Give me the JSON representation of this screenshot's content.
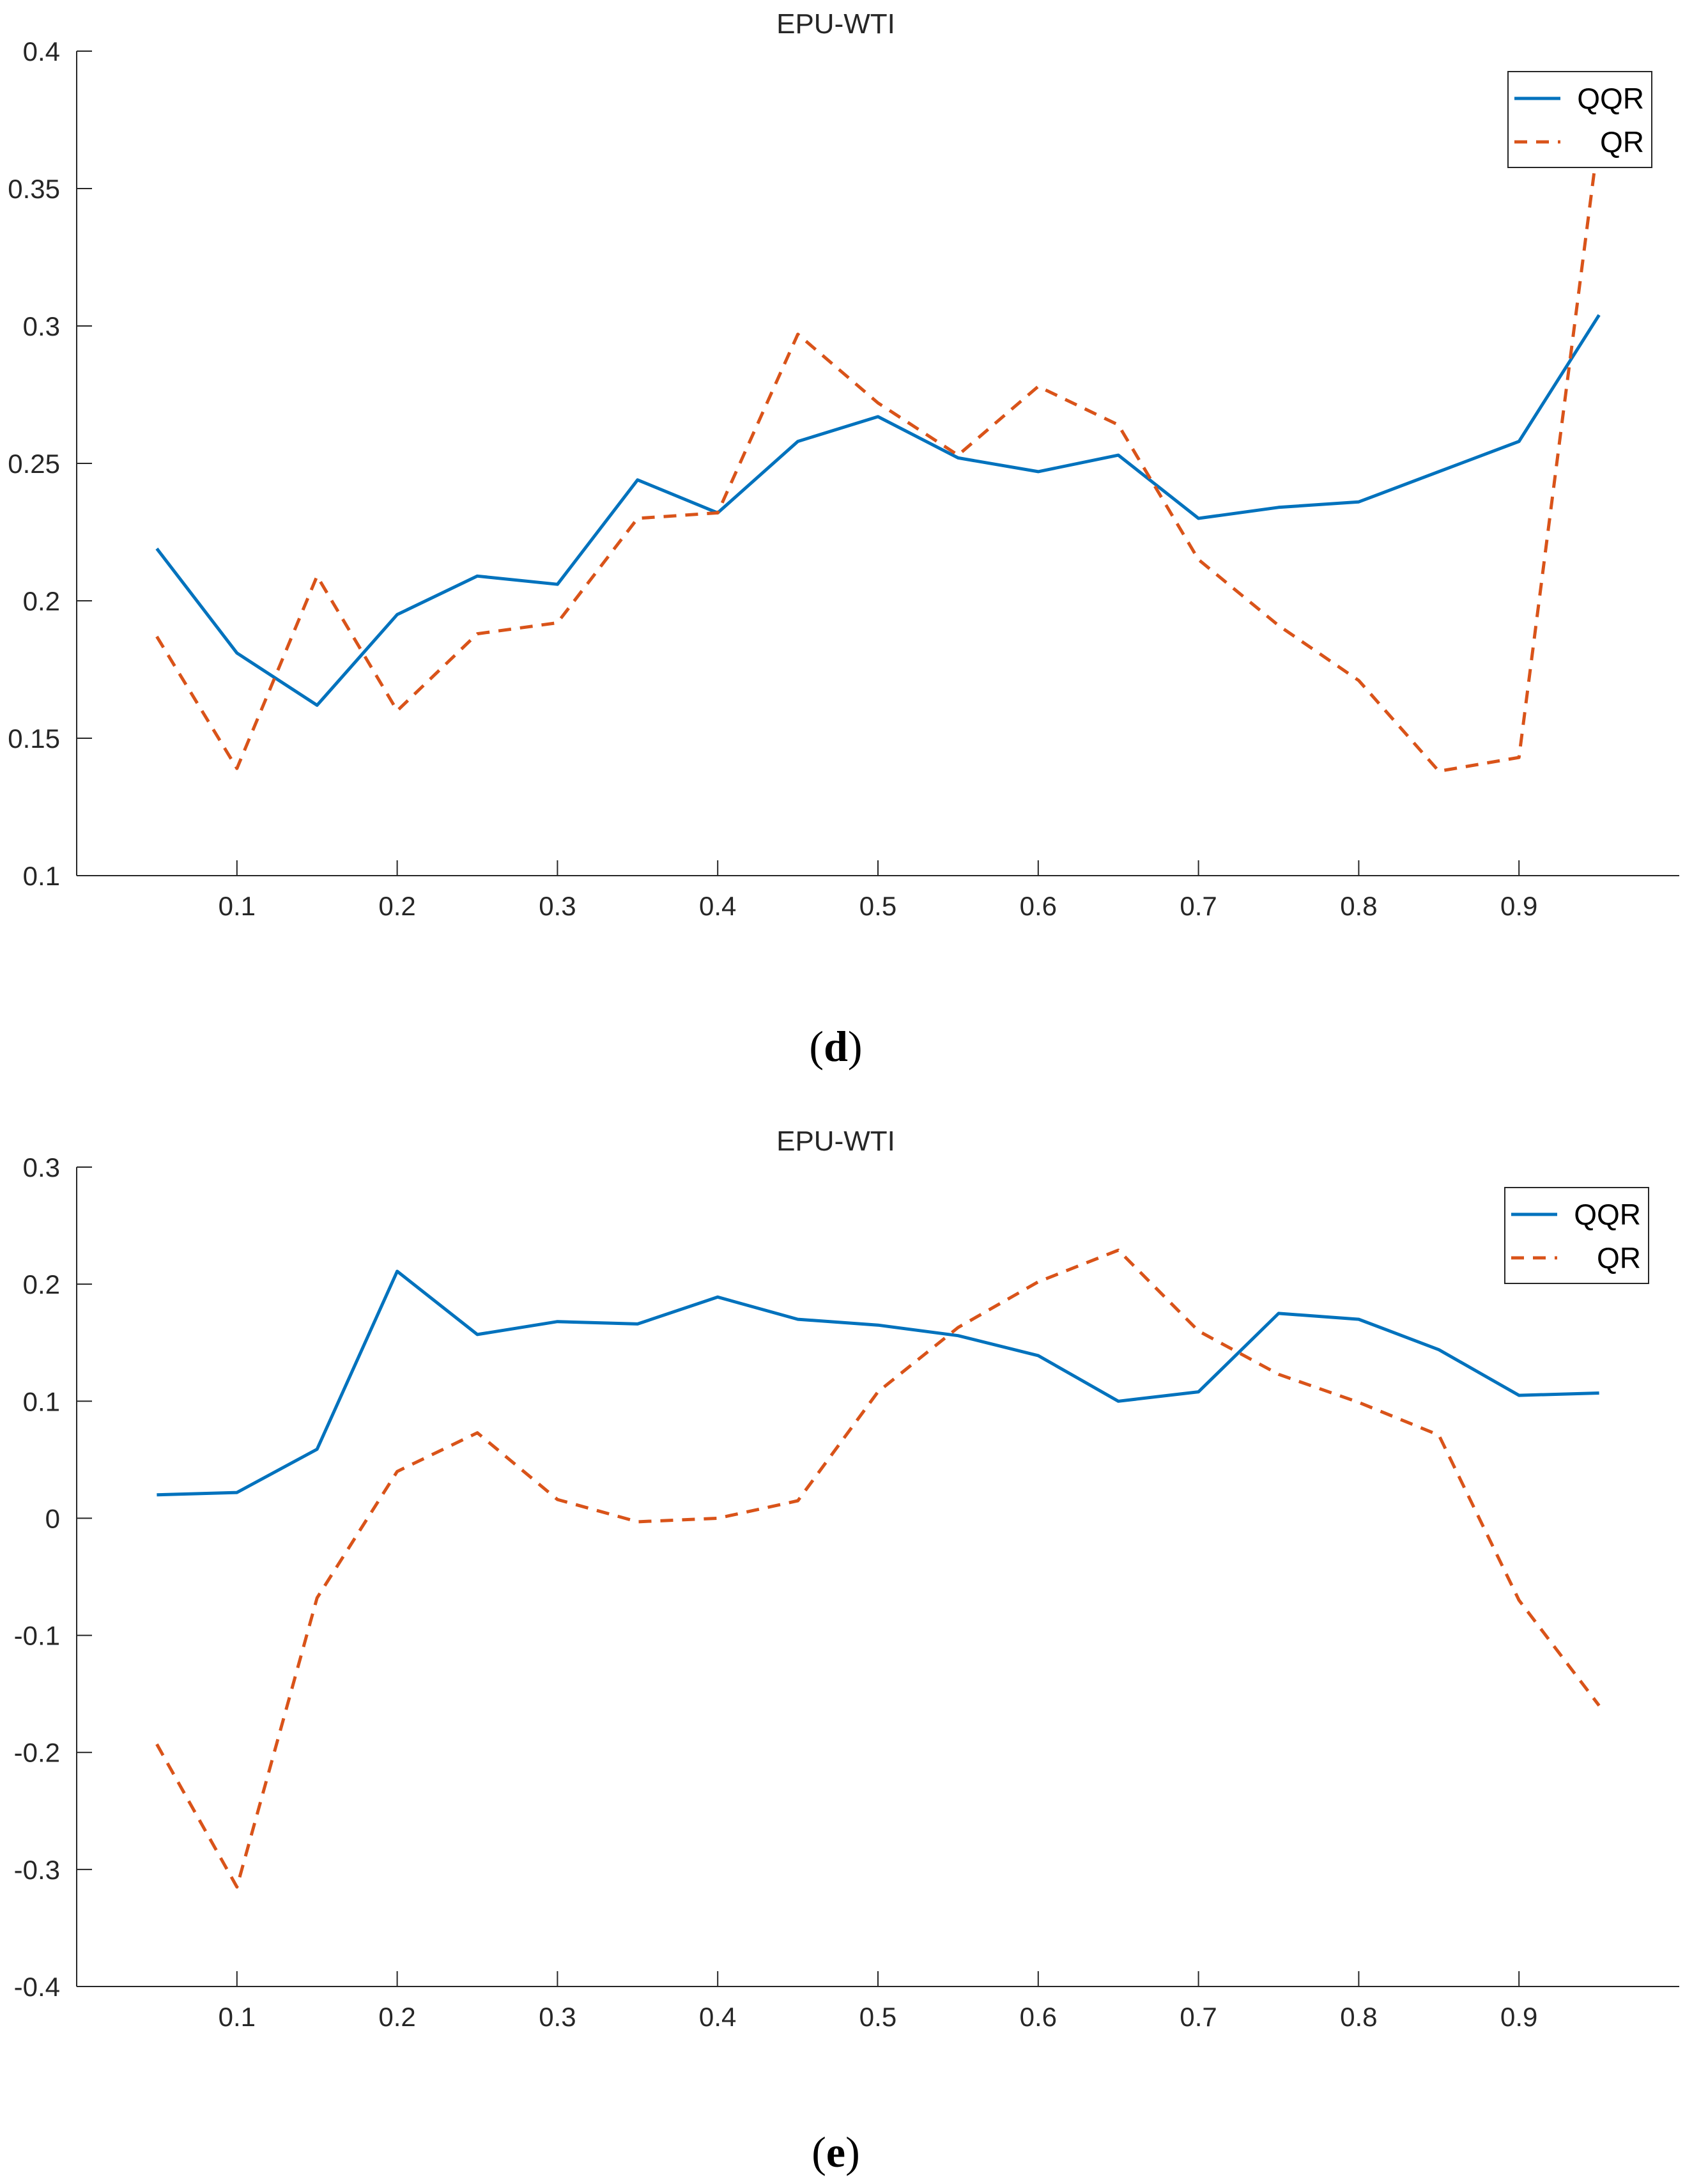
{
  "colors": {
    "qqr": "#0072BD",
    "qr": "#D95319",
    "axis": "#262626"
  },
  "chart_data": [
    {
      "type": "line",
      "panel_label": "d",
      "title": "EPU-WTI",
      "xlabel": "",
      "ylabel": "",
      "xlim": [
        0.0,
        1.0
      ],
      "ylim": [
        0.1,
        0.4
      ],
      "x": [
        0.05,
        0.1,
        0.15,
        0.2,
        0.25,
        0.3,
        0.35,
        0.4,
        0.45,
        0.5,
        0.55,
        0.6,
        0.65,
        0.7,
        0.75,
        0.8,
        0.85,
        0.9,
        0.95
      ],
      "x_ticks": [
        0.1,
        0.2,
        0.3,
        0.4,
        0.5,
        0.6,
        0.7,
        0.8,
        0.9
      ],
      "x_tick_labels": [
        "0.1",
        "0.2",
        "0.3",
        "0.4",
        "0.5",
        "0.6",
        "0.7",
        "0.8",
        "0.9"
      ],
      "y_ticks": [
        0.1,
        0.15,
        0.2,
        0.25,
        0.3,
        0.35,
        0.4
      ],
      "y_tick_labels": [
        "0.1",
        "0.15",
        "0.2",
        "0.25",
        "0.3",
        "0.35",
        "0.4"
      ],
      "legend_position": "top-right",
      "grid": false,
      "series": [
        {
          "name": "QQR",
          "style": "solid",
          "values": [
            0.219,
            0.181,
            0.162,
            0.195,
            0.209,
            0.206,
            0.244,
            0.232,
            0.258,
            0.267,
            0.252,
            0.247,
            0.253,
            0.23,
            0.234,
            0.236,
            0.247,
            0.258,
            0.304
          ]
        },
        {
          "name": "QR",
          "style": "dashed",
          "values": [
            0.187,
            0.139,
            0.209,
            0.16,
            0.188,
            0.192,
            0.23,
            0.232,
            0.297,
            0.272,
            0.253,
            0.278,
            0.264,
            0.215,
            0.191,
            0.171,
            0.138,
            0.143,
            0.37
          ]
        }
      ]
    },
    {
      "type": "line",
      "panel_label": "e",
      "title": "EPU-WTI",
      "xlabel": "",
      "ylabel": "",
      "xlim": [
        0.0,
        1.0
      ],
      "ylim": [
        -0.4,
        0.3
      ],
      "x": [
        0.05,
        0.1,
        0.15,
        0.2,
        0.25,
        0.3,
        0.35,
        0.4,
        0.45,
        0.5,
        0.55,
        0.6,
        0.65,
        0.7,
        0.75,
        0.8,
        0.85,
        0.9,
        0.95
      ],
      "x_ticks": [
        0.1,
        0.2,
        0.3,
        0.4,
        0.5,
        0.6,
        0.7,
        0.8,
        0.9
      ],
      "x_tick_labels": [
        "0.1",
        "0.2",
        "0.3",
        "0.4",
        "0.5",
        "0.6",
        "0.7",
        "0.8",
        "0.9"
      ],
      "y_ticks": [
        -0.4,
        -0.3,
        -0.2,
        -0.1,
        0,
        0.1,
        0.2,
        0.3
      ],
      "y_tick_labels": [
        "-0.4",
        "-0.3",
        "-0.2",
        "-0.1",
        "0",
        "0.1",
        "0.2",
        "0.3"
      ],
      "legend_position": "top-right",
      "grid": false,
      "series": [
        {
          "name": "QQR",
          "style": "solid",
          "values": [
            0.02,
            0.022,
            0.059,
            0.211,
            0.157,
            0.168,
            0.166,
            0.189,
            0.17,
            0.165,
            0.156,
            0.139,
            0.1,
            0.108,
            0.175,
            0.17,
            0.144,
            0.105,
            0.107
          ]
        },
        {
          "name": "QR",
          "style": "dashed",
          "values": [
            -0.193,
            -0.315,
            -0.068,
            0.04,
            0.073,
            0.016,
            -0.003,
            0.0,
            0.015,
            0.108,
            0.163,
            0.202,
            0.229,
            0.16,
            0.123,
            0.099,
            0.071,
            -0.07,
            -0.16
          ]
        }
      ]
    }
  ]
}
